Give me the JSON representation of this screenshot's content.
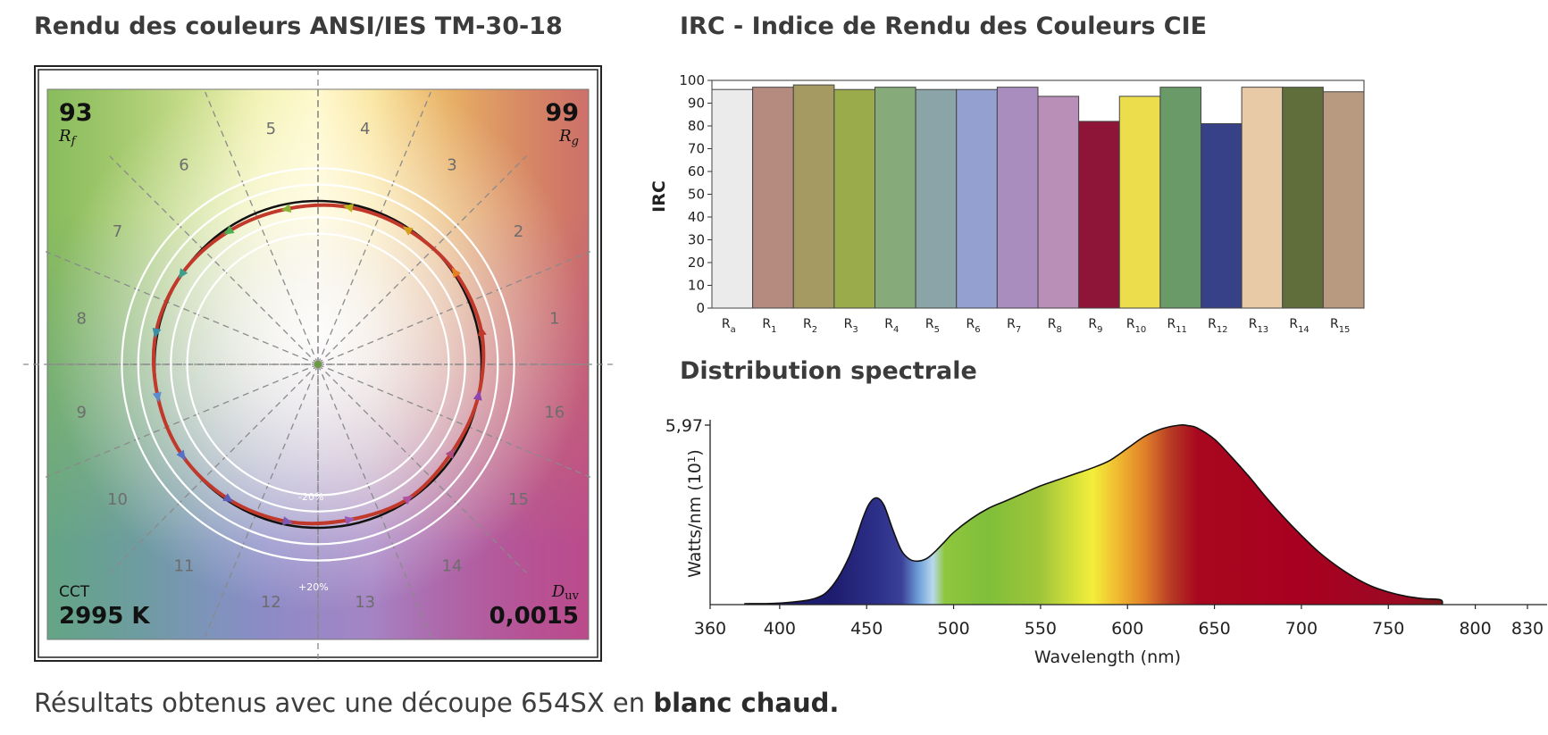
{
  "page": {
    "tm30_title": "Rendu des couleurs ANSI/IES TM-30-18",
    "cri_title": "IRC - Indice de Rendu des Couleurs CIE",
    "spd_title": "Distribution spectrale",
    "caption_text": "Résultats obtenus avec une découpe 654SX en ",
    "caption_bold": "blanc chaud."
  },
  "tm30": {
    "rf_value": "93",
    "rf_label": "R",
    "rf_sub": "f",
    "rg_value": "99",
    "rg_label": "R",
    "rg_sub": "g",
    "cct_label": "CCT",
    "cct_value": "2995 K",
    "duv_label": "D",
    "duv_sub": "uv",
    "duv_value": "0,0015",
    "ring_minus": "-20%",
    "ring_plus": "+20%",
    "hue_bins": [
      "1",
      "2",
      "3",
      "4",
      "5",
      "6",
      "7",
      "8",
      "9",
      "10",
      "11",
      "12",
      "13",
      "14",
      "15",
      "16"
    ],
    "test_radii": [
      1.02,
      1.01,
      0.99,
      0.98,
      0.97,
      0.98,
      1.0,
      1.01,
      1.0,
      1.0,
      0.99,
      0.98,
      0.97,
      0.99,
      0.98,
      1.0
    ],
    "colors": {
      "reference": "#111111",
      "test": "#c0392b",
      "arrows": [
        "#c0392b",
        "#e67e22",
        "#d4a017",
        "#b8b21c",
        "#8bb33a",
        "#4caf50",
        "#3f9f8f",
        "#3a8fa8",
        "#5a8ccf",
        "#5570c9",
        "#5b5bb8",
        "#7e5ab8",
        "#9b59b6",
        "#b0509e",
        "#b04a7a",
        "#8e44ad"
      ]
    }
  },
  "chart_data": [
    {
      "type": "bar",
      "title": "IRC - Indice de Rendu des Couleurs CIE",
      "ylabel": "IRC",
      "ylim": [
        0,
        100
      ],
      "yticks": [
        "0",
        "10",
        "20",
        "30",
        "40",
        "50",
        "60",
        "70",
        "80",
        "90",
        "100"
      ],
      "categories": [
        {
          "main": "R",
          "sub": "a"
        },
        {
          "main": "R",
          "sub": "1"
        },
        {
          "main": "R",
          "sub": "2"
        },
        {
          "main": "R",
          "sub": "3"
        },
        {
          "main": "R",
          "sub": "4"
        },
        {
          "main": "R",
          "sub": "5"
        },
        {
          "main": "R",
          "sub": "6"
        },
        {
          "main": "R",
          "sub": "7"
        },
        {
          "main": "R",
          "sub": "8"
        },
        {
          "main": "R",
          "sub": "9"
        },
        {
          "main": "R",
          "sub": "10"
        },
        {
          "main": "R",
          "sub": "11"
        },
        {
          "main": "R",
          "sub": "12"
        },
        {
          "main": "R",
          "sub": "13"
        },
        {
          "main": "R",
          "sub": "14"
        },
        {
          "main": "R",
          "sub": "15"
        }
      ],
      "values": [
        96,
        97,
        98,
        96,
        97,
        96,
        96,
        97,
        93,
        82,
        93,
        97,
        81,
        97,
        97,
        95
      ],
      "bar_colors": [
        "#ebebeb",
        "#b58b80",
        "#a59b62",
        "#99ab4b",
        "#86aa79",
        "#8aa4a8",
        "#94a0cf",
        "#a98dbf",
        "#b98fb8",
        "#8e1438",
        "#ecdd4d",
        "#6a9a67",
        "#364188",
        "#e8cba6",
        "#5f6e3b",
        "#b89a80"
      ]
    },
    {
      "type": "area",
      "title": "Distribution spectrale",
      "xlabel": "Wavelength (nm)",
      "ylabel": "Watts/nm (10¹)",
      "y_max_label": "5,97",
      "xlim": [
        360,
        830
      ],
      "ylim": [
        0,
        5.97
      ],
      "xticks": [
        "360",
        "400",
        "450",
        "500",
        "550",
        "600",
        "650",
        "700",
        "750",
        "800",
        "830"
      ],
      "x": [
        380,
        400,
        420,
        430,
        440,
        448,
        452,
        456,
        460,
        465,
        470,
        475,
        480,
        485,
        490,
        495,
        500,
        510,
        520,
        530,
        540,
        550,
        560,
        570,
        580,
        590,
        600,
        610,
        620,
        630,
        635,
        640,
        650,
        660,
        670,
        680,
        690,
        700,
        710,
        720,
        730,
        740,
        750,
        760,
        770,
        780,
        781
      ],
      "y": [
        0.03,
        0.05,
        0.2,
        0.6,
        1.6,
        2.9,
        3.4,
        3.55,
        3.3,
        2.5,
        1.8,
        1.5,
        1.45,
        1.55,
        1.8,
        2.1,
        2.4,
        2.85,
        3.2,
        3.45,
        3.7,
        3.95,
        4.15,
        4.35,
        4.55,
        4.8,
        5.2,
        5.6,
        5.85,
        5.97,
        5.95,
        5.88,
        5.5,
        4.9,
        4.25,
        3.55,
        2.9,
        2.3,
        1.75,
        1.3,
        0.92,
        0.62,
        0.42,
        0.28,
        0.2,
        0.16,
        0.0
      ]
    }
  ]
}
